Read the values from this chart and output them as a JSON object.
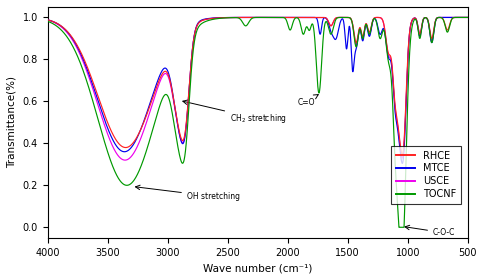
{
  "xlabel": "Wave number (cm⁻¹)",
  "ylabel": "Transmittance(%)",
  "xlim": [
    4000,
    500
  ],
  "ylim": [
    -0.05,
    1.05
  ],
  "colors": {
    "RHCE": "#FF2222",
    "MTCE": "#0000EE",
    "USCE": "#EE00EE",
    "TOCNF": "#009900"
  },
  "xticks": [
    4000,
    3500,
    3000,
    2500,
    2000,
    1500,
    1000,
    500
  ],
  "yticks": [
    0.0,
    0.2,
    0.4,
    0.6,
    0.8,
    1.0
  ]
}
